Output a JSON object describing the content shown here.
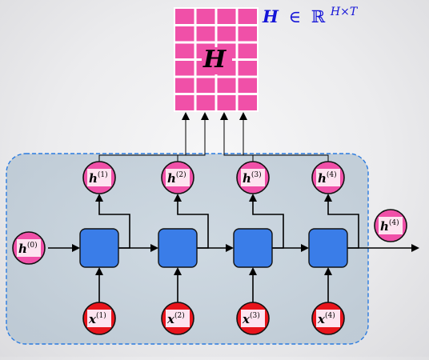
{
  "title": "RNN unrolled over time producing hidden-state matrix",
  "matrix": {
    "label": "H",
    "annotation": {
      "symbol": "H",
      "relation": "∈",
      "space": "ℝ",
      "exponent": "H×T"
    },
    "rows": 6,
    "cols": 4,
    "fill_color": "#f050a8",
    "grid_color": "#ffffff"
  },
  "initial_state": {
    "base": "h",
    "index": "(0)"
  },
  "final_state": {
    "base": "h",
    "index": "(4)"
  },
  "steps": [
    {
      "hidden": {
        "base": "h",
        "index": "(1)"
      },
      "input": {
        "base": "x",
        "index": "(1)"
      }
    },
    {
      "hidden": {
        "base": "h",
        "index": "(2)"
      },
      "input": {
        "base": "x",
        "index": "(2)"
      }
    },
    {
      "hidden": {
        "base": "h",
        "index": "(3)"
      },
      "input": {
        "base": "x",
        "index": "(3)"
      }
    },
    {
      "hidden": {
        "base": "h",
        "index": "(4)"
      },
      "input": {
        "base": "x",
        "index": "(4)"
      }
    }
  ],
  "colors": {
    "hidden_node": "#f050a8",
    "input_node": "#e8141c",
    "cell": "#3a7de8",
    "label_pad": "#fde4f0",
    "annotation": "#1414d8",
    "region_fill": "#b8c8d4",
    "region_border": "#2a7be0",
    "arrow": "#000000"
  },
  "icons": {
    "cell": "rnn-cell-square",
    "hidden": "hidden-state-circle",
    "input": "input-circle"
  }
}
